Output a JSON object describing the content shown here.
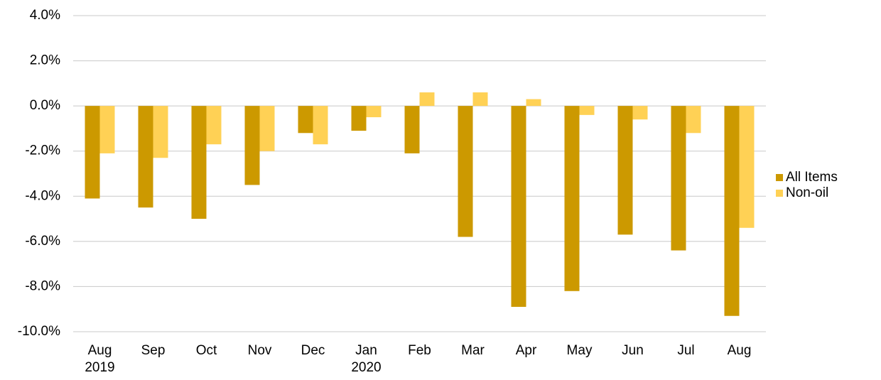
{
  "chart_data": {
    "type": "bar",
    "categories": [
      "Aug 2019",
      "Sep",
      "Oct",
      "Nov",
      "Dec",
      "Jan 2020",
      "Feb",
      "Mar",
      "Apr",
      "May",
      "Jun",
      "Jul",
      "Aug"
    ],
    "series": [
      {
        "name": "All Items",
        "color": "#cc9900",
        "values": [
          -4.1,
          -4.5,
          -5.0,
          -3.5,
          -1.2,
          -1.1,
          -2.1,
          -5.8,
          -8.9,
          -8.2,
          -5.7,
          -6.4,
          -9.3
        ]
      },
      {
        "name": "Non-oil",
        "color": "#ffd155",
        "values": [
          -2.1,
          -2.3,
          -1.7,
          -2.0,
          -1.7,
          -0.5,
          0.6,
          0.6,
          0.3,
          -0.4,
          -0.6,
          -1.2,
          -5.4
        ]
      }
    ],
    "ylim": [
      -10,
      4
    ],
    "yticks": [
      {
        "value": 4,
        "label": "4.0%"
      },
      {
        "value": 2,
        "label": "2.0%"
      },
      {
        "value": 0,
        "label": "0.0%"
      },
      {
        "value": -2,
        "label": "-2.0%"
      },
      {
        "value": -4,
        "label": "-4.0%"
      },
      {
        "value": -6,
        "label": "-6.0%"
      },
      {
        "value": -8,
        "label": "-8.0%"
      },
      {
        "value": -10,
        "label": "-10.0%"
      }
    ],
    "grid": true,
    "legend": "right"
  }
}
